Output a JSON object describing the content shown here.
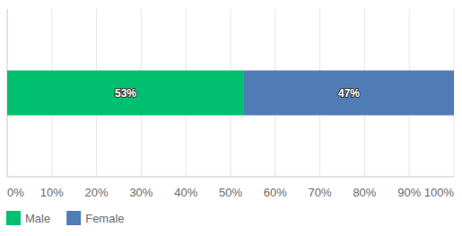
{
  "chart_data": {
    "type": "bar",
    "orientation": "horizontal",
    "stacked": true,
    "data_labels": true,
    "grid": true,
    "legend": "bottom-left",
    "categories": [
      null
    ],
    "series": [
      {
        "name": "Male",
        "color": "#00bf6f",
        "values": [
          53
        ],
        "value_labels": [
          "53%"
        ]
      },
      {
        "name": "Female",
        "color": "#507cb6",
        "values": [
          47
        ],
        "value_labels": [
          "47%"
        ]
      }
    ],
    "xlim": [
      0,
      100
    ],
    "xticks": [
      {
        "value": 0,
        "label": "0%"
      },
      {
        "value": 10,
        "label": "10%"
      },
      {
        "value": 20,
        "label": "20%"
      },
      {
        "value": 30,
        "label": "30%"
      },
      {
        "value": 40,
        "label": "40%"
      },
      {
        "value": 50,
        "label": "50%"
      },
      {
        "value": 60,
        "label": "60%"
      },
      {
        "value": 70,
        "label": "70%"
      },
      {
        "value": 80,
        "label": "80%"
      },
      {
        "value": 90,
        "label": "90%"
      },
      {
        "value": 100,
        "label": "100%"
      }
    ]
  }
}
